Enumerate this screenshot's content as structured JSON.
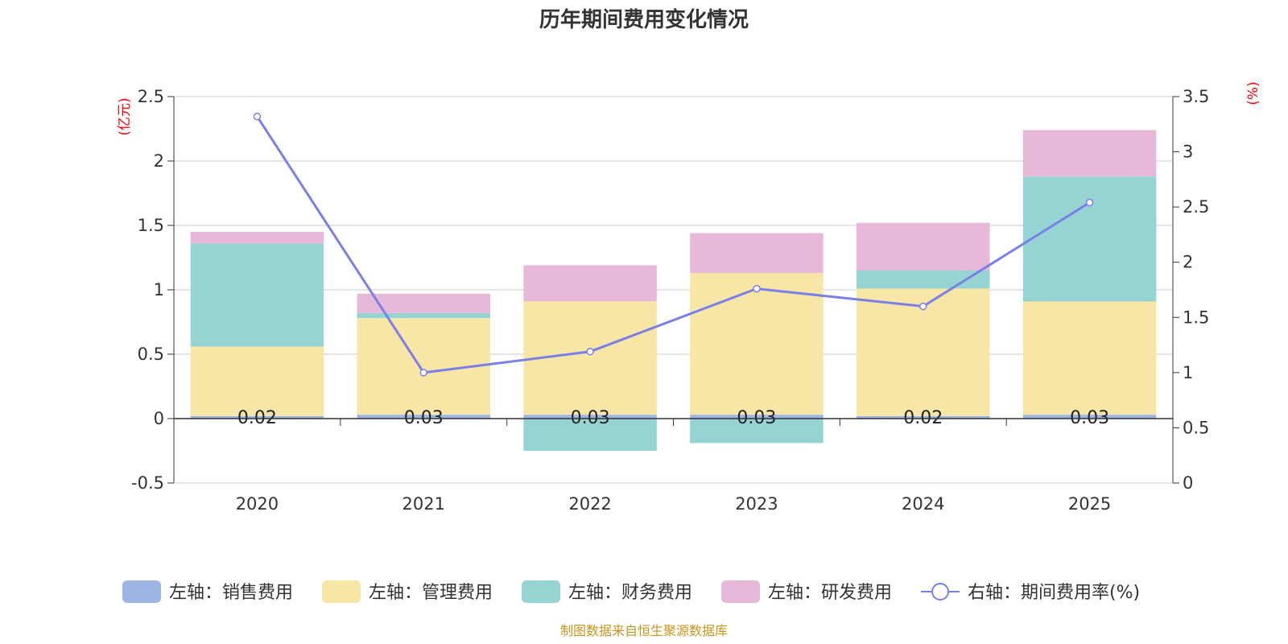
{
  "title": "历年期间费用变化情况",
  "source": "制图数据来自恒生聚源数据库",
  "chart_data": {
    "type": "bar",
    "stacked": true,
    "categories": [
      "2020",
      "2021",
      "2022",
      "2023",
      "2024",
      "2025"
    ],
    "left_axis": {
      "unit": "(亿元)",
      "ylim": [
        -0.5,
        2.5
      ],
      "ticks": [
        2.5,
        2,
        1.5,
        1,
        0.5,
        0,
        -0.5
      ],
      "tick_labels": [
        "2.5",
        "2",
        "1.5",
        "1",
        "0.5",
        "0",
        "-0.5"
      ]
    },
    "right_axis": {
      "unit": "(%)",
      "ylim": [
        0,
        3.5
      ],
      "ticks": [
        3.5,
        3,
        2.5,
        2,
        1.5,
        1,
        0.5,
        0
      ],
      "tick_labels": [
        "3.5",
        "3",
        "2.5",
        "2",
        "1.5",
        "1",
        "0.5",
        "0"
      ]
    },
    "series": [
      {
        "name": "左轴：销售费用",
        "axis": "left",
        "type": "bar",
        "color": "#9db5e3",
        "values": [
          0.02,
          0.03,
          0.03,
          0.03,
          0.02,
          0.03
        ],
        "labels": [
          "0.02",
          "0.03",
          "0.03",
          "0.03",
          "0.02",
          "0.03"
        ]
      },
      {
        "name": "左轴：管理费用",
        "axis": "left",
        "type": "bar",
        "color": "#f7e6a6",
        "values": [
          0.54,
          0.75,
          0.88,
          1.1,
          0.99,
          0.88
        ]
      },
      {
        "name": "左轴：财务费用",
        "axis": "left",
        "type": "bar",
        "color": "#96d3d3",
        "values": [
          0.8,
          0.04,
          -0.25,
          -0.19,
          0.14,
          0.97
        ]
      },
      {
        "name": "左轴：研发费用",
        "axis": "left",
        "type": "bar",
        "color": "#e8b8d8",
        "values": [
          0.09,
          0.15,
          0.28,
          0.31,
          0.37,
          0.36
        ]
      },
      {
        "name": "右轴：期间费用率(%)",
        "axis": "right",
        "type": "line",
        "color": "#7b7fe8",
        "values": [
          3.32,
          1.0,
          1.19,
          1.76,
          1.6,
          2.54
        ]
      }
    ]
  }
}
